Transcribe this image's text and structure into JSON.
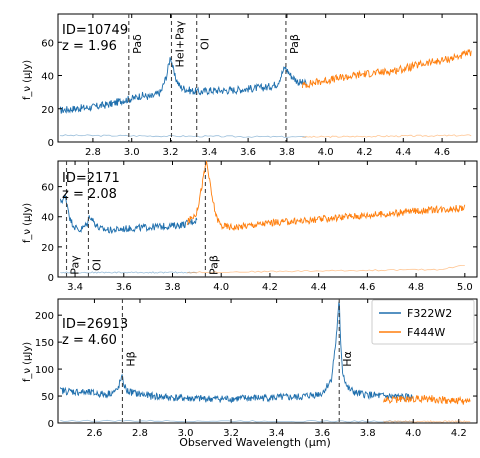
{
  "colors": {
    "f322": "#1f6fad",
    "f444": "#ff7f0e",
    "line_marker": "#444444"
  },
  "chart_data": [
    {
      "type": "line",
      "id_label": "ID=10749",
      "z_label": "z = 1.96",
      "ylabel": "f_ν (μJy)",
      "xlim": [
        2.62,
        4.78
      ],
      "ylim": [
        0,
        77
      ],
      "xticks": [
        "2.8",
        "3.0",
        "3.2",
        "3.4",
        "3.6",
        "3.8",
        "4.0",
        "4.2",
        "4.4",
        "4.6"
      ],
      "yticks": [
        "0",
        "20",
        "40",
        "60"
      ],
      "emission_lines": [
        {
          "label": "Paδ",
          "x": 2.985
        },
        {
          "label": "HeI+Paγ",
          "x": 3.205
        },
        {
          "label": "OI",
          "x": 3.335
        },
        {
          "label": "Paβ",
          "x": 3.795
        }
      ],
      "series": [
        {
          "filter": "f322",
          "x": [
            2.63,
            2.7,
            2.8,
            2.9,
            2.95,
            3.0,
            3.05,
            3.1,
            3.15,
            3.18,
            3.2,
            3.22,
            3.25,
            3.3,
            3.35,
            3.4,
            3.5,
            3.6,
            3.7,
            3.75,
            3.79,
            3.82,
            3.86,
            3.9
          ],
          "values": [
            19,
            20,
            21,
            23,
            25,
            26,
            28,
            27,
            30,
            40,
            52,
            40,
            33,
            31,
            30,
            31,
            31,
            32,
            33,
            35,
            45,
            40,
            36,
            35
          ]
        },
        {
          "filter": "f444",
          "x": [
            3.88,
            3.95,
            4.0,
            4.1,
            4.2,
            4.3,
            4.4,
            4.5,
            4.6,
            4.7,
            4.75
          ],
          "values": [
            34,
            36,
            37,
            39,
            41,
            42,
            44,
            47,
            49,
            52,
            54
          ]
        }
      ],
      "errors": [
        {
          "filter": "f322",
          "x": [
            2.63,
            3.9
          ],
          "values": [
            4,
            3
          ]
        },
        {
          "filter": "f444",
          "x": [
            3.88,
            4.75
          ],
          "values": [
            3,
            4
          ]
        }
      ]
    },
    {
      "type": "line",
      "id_label": "ID=2171",
      "z_label": "z = 2.08",
      "ylabel": "f_ν (μJy)",
      "xlim": [
        3.33,
        5.05
      ],
      "ylim": [
        0,
        77
      ],
      "xticks": [
        "3.4",
        "3.6",
        "3.8",
        "4.0",
        "4.2",
        "4.4",
        "4.6",
        "4.8",
        "5.0"
      ],
      "yticks": [
        "0",
        "20",
        "40",
        "60"
      ],
      "emission_lines": [
        {
          "label": "Paγ",
          "x": 3.365
        },
        {
          "label": "OI",
          "x": 3.455
        },
        {
          "label": "Paβ",
          "x": 3.935
        }
      ],
      "series": [
        {
          "filter": "f322",
          "x": [
            3.34,
            3.36,
            3.37,
            3.38,
            3.4,
            3.42,
            3.45,
            3.46,
            3.48,
            3.5,
            3.55,
            3.6,
            3.7,
            3.8,
            3.85,
            3.9
          ],
          "values": [
            50,
            53,
            47,
            38,
            33,
            31,
            35,
            41,
            36,
            32,
            31,
            32,
            33,
            34,
            35,
            38
          ]
        },
        {
          "filter": "f444",
          "x": [
            3.86,
            3.9,
            3.92,
            3.94,
            3.96,
            3.98,
            4.0,
            4.05,
            4.1,
            4.2,
            4.3,
            4.4,
            4.5,
            4.6,
            4.7,
            4.8,
            4.9,
            5.0
          ],
          "values": [
            36,
            43,
            60,
            77,
            55,
            40,
            34,
            33,
            34,
            36,
            37,
            38,
            40,
            41,
            42,
            44,
            45,
            46
          ]
        }
      ],
      "errors": [
        {
          "filter": "f322",
          "x": [
            3.34,
            3.9
          ],
          "values": [
            3,
            3
          ]
        },
        {
          "filter": "f444",
          "x": [
            3.86,
            4.9,
            5.0
          ],
          "values": [
            3,
            5,
            8
          ]
        }
      ]
    },
    {
      "type": "line",
      "id_label": "ID=26913",
      "z_label": "z = 4.60",
      "ylabel": "f_ν (μJy)",
      "xlabel": "Observed Wavelength (μm)",
      "xlim": [
        2.44,
        4.28
      ],
      "ylim": [
        0,
        230
      ],
      "xticks": [
        "2.6",
        "2.8",
        "3.0",
        "3.2",
        "3.4",
        "3.6",
        "3.8",
        "4.0",
        "4.2"
      ],
      "yticks": [
        "0",
        "50",
        "100",
        "150",
        "200"
      ],
      "emission_lines": [
        {
          "label": "Hβ",
          "x": 2.723
        },
        {
          "label": "Hα",
          "x": 3.675
        }
      ],
      "legend": {
        "position": "top-right",
        "entries": [
          {
            "filter": "f322",
            "label": "F322W2"
          },
          {
            "filter": "f444",
            "label": "F444W"
          }
        ]
      },
      "series": [
        {
          "filter": "f322",
          "x": [
            2.45,
            2.55,
            2.65,
            2.7,
            2.72,
            2.74,
            2.78,
            2.85,
            2.95,
            3.05,
            3.2,
            3.35,
            3.5,
            3.6,
            3.64,
            3.66,
            3.67,
            3.675,
            3.68,
            3.69,
            3.71,
            3.75,
            3.85,
            3.95,
            4.0
          ],
          "values": [
            60,
            57,
            53,
            60,
            85,
            60,
            55,
            50,
            47,
            45,
            45,
            47,
            48,
            55,
            80,
            150,
            200,
            230,
            160,
            95,
            65,
            55,
            50,
            48,
            47
          ]
        },
        {
          "filter": "f444",
          "x": [
            3.87,
            3.95,
            4.05,
            4.15,
            4.25
          ],
          "values": [
            42,
            44,
            46,
            42,
            40
          ]
        }
      ],
      "errors": [
        {
          "filter": "f322",
          "x": [
            2.45,
            4.0
          ],
          "values": [
            4,
            3
          ]
        },
        {
          "filter": "f444",
          "x": [
            3.87,
            4.25
          ],
          "values": [
            3,
            3
          ]
        }
      ]
    }
  ]
}
